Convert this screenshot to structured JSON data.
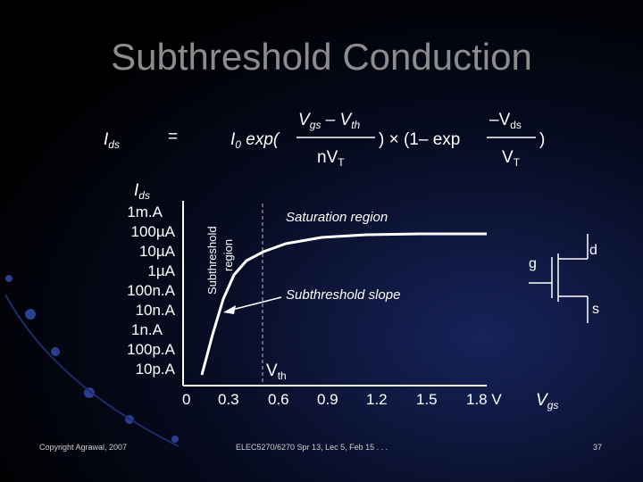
{
  "title": "Subthreshold Conduction",
  "equation": {
    "lhs": "I",
    "lhs_sub": "ds",
    "equals": "=",
    "i0": "I",
    "i0_sub": "0",
    "exp_open": "exp(",
    "num1_v": "V",
    "num1_gs": "gs",
    "num1_minus": "– V",
    "num1_th": "th",
    "den1": "nV",
    "den1_sub": "T",
    "mid": ") × (1– exp",
    "num2": "–V",
    "num2_sub": "ds",
    "den2": "V",
    "den2_sub": "T",
    "close": ")"
  },
  "chart": {
    "ylabel": "I",
    "ylabel_sub": "ds",
    "yticks": [
      "1m.A",
      "100µA",
      "10µA",
      "1µA",
      "100n.A",
      "10n.A",
      "1n.A",
      "100p.A",
      "10p.A"
    ],
    "xticks": [
      "0",
      "0.3",
      "0.6",
      "0.9",
      "1.2",
      "1.5",
      "1.8 V"
    ],
    "xlabel": "V",
    "xlabel_sub": "gs",
    "subthreshold_region_line1": "Subthreshold",
    "subthreshold_region_line2": "region",
    "saturation_label": "Saturation region",
    "slope_label": "Subthreshold slope",
    "vth_label": "V",
    "vth_sub": "th"
  },
  "transistor": {
    "gate": "g",
    "drain": "d",
    "source": "s"
  },
  "footer": {
    "copyright": "Copyright Agrawal, 2007",
    "course": "ELEC5270/6270 Spr 13, Lec 5, Feb 15 . . .",
    "page": "37"
  },
  "colors": {
    "title": "#8c8c8c",
    "curve": "#ffffff",
    "background": "#000000",
    "accent": "#16235a"
  }
}
